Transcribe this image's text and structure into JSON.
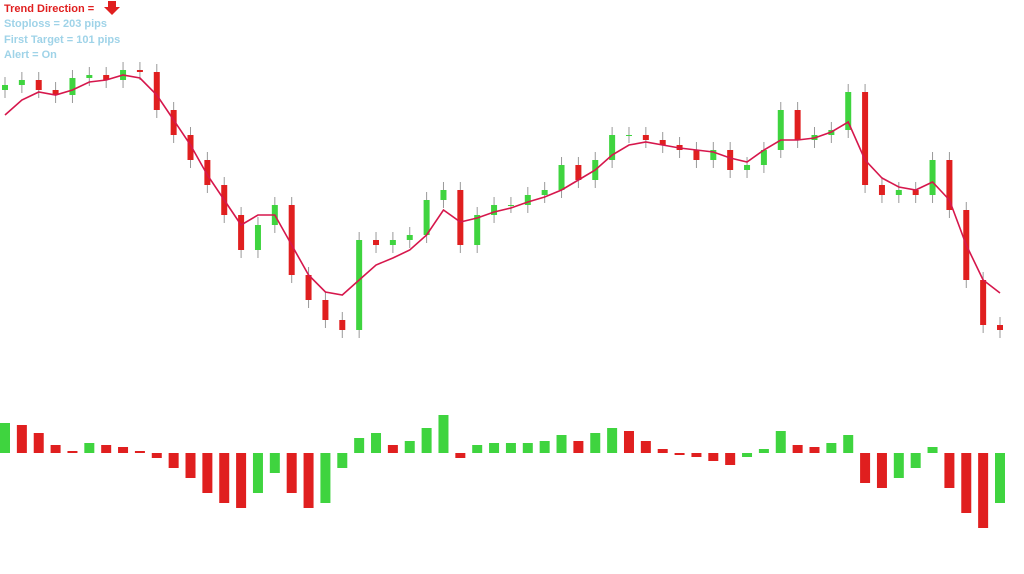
{
  "chart_data": [
    {
      "type": "candlestick",
      "annotations": [
        "Trend Direction =",
        "Stoploss = 203 pips",
        "First Target = 101 pips",
        "Alert = On"
      ],
      "open": [
        255,
        260,
        265,
        255,
        250,
        267,
        270,
        265,
        275,
        273,
        235,
        210,
        185,
        160,
        130,
        95,
        120,
        140,
        70,
        45,
        25,
        15,
        105,
        100,
        105,
        110,
        145,
        155,
        100,
        130,
        140,
        140,
        150,
        155,
        180,
        165,
        185,
        210,
        210,
        205,
        200,
        195,
        185,
        195,
        175,
        180,
        195,
        235,
        205,
        210,
        215,
        253,
        160,
        150,
        155,
        150,
        185,
        135,
        65,
        20
      ],
      "high": [
        268,
        273,
        273,
        263,
        275,
        278,
        278,
        283,
        283,
        281,
        243,
        218,
        193,
        168,
        138,
        128,
        148,
        148,
        78,
        53,
        33,
        113,
        113,
        113,
        118,
        153,
        163,
        163,
        138,
        148,
        148,
        158,
        163,
        188,
        188,
        193,
        218,
        218,
        218,
        213,
        208,
        203,
        203,
        203,
        188,
        203,
        243,
        243,
        218,
        223,
        261,
        261,
        168,
        163,
        163,
        193,
        193,
        143,
        73,
        28
      ],
      "low": [
        247,
        252,
        247,
        242,
        242,
        259,
        257,
        257,
        265,
        227,
        202,
        177,
        152,
        122,
        87,
        87,
        112,
        62,
        37,
        17,
        7,
        7,
        92,
        92,
        97,
        102,
        137,
        92,
        92,
        122,
        132,
        132,
        142,
        147,
        157,
        157,
        177,
        202,
        197,
        192,
        187,
        177,
        177,
        167,
        167,
        172,
        187,
        197,
        197,
        202,
        207,
        152,
        142,
        142,
        142,
        142,
        127,
        57,
        12,
        7
      ],
      "close": [
        260,
        265,
        255,
        250,
        267,
        270,
        265,
        275,
        273,
        235,
        210,
        185,
        160,
        130,
        95,
        120,
        140,
        70,
        45,
        25,
        15,
        105,
        100,
        105,
        110,
        145,
        155,
        100,
        130,
        140,
        140,
        150,
        155,
        180,
        165,
        185,
        210,
        210,
        205,
        200,
        195,
        185,
        195,
        175,
        180,
        195,
        235,
        205,
        210,
        215,
        253,
        160,
        150,
        155,
        150,
        185,
        135,
        65,
        20,
        15
      ],
      "up_color": "#3fd43f",
      "down_color": "#e01f1f",
      "ylim": [
        0,
        345
      ],
      "moving_average": {
        "color": "#d6174c",
        "values": [
          230,
          245,
          253,
          250,
          255,
          263,
          265,
          270,
          267,
          250,
          225,
          200,
          170,
          145,
          120,
          130,
          130,
          100,
          70,
          53,
          50,
          65,
          80,
          87,
          95,
          110,
          135,
          123,
          127,
          133,
          137,
          143,
          148,
          155,
          165,
          175,
          190,
          200,
          203,
          200,
          197,
          195,
          193,
          187,
          183,
          195,
          205,
          205,
          207,
          213,
          223,
          185,
          167,
          158,
          155,
          163,
          145,
          100,
          65,
          52
        ]
      }
    },
    {
      "type": "histogram",
      "values": [
        30,
        28,
        20,
        8,
        2,
        10,
        8,
        6,
        2,
        -5,
        -15,
        -25,
        -40,
        -50,
        -55,
        -40,
        -20,
        -40,
        -55,
        -50,
        -15,
        15,
        20,
        8,
        12,
        25,
        38,
        -5,
        8,
        10,
        10,
        10,
        12,
        18,
        12,
        20,
        25,
        22,
        12,
        4,
        -2,
        -4,
        -8,
        -12,
        -4,
        4,
        22,
        8,
        6,
        10,
        18,
        -30,
        -35,
        -25,
        -15,
        6,
        -35,
        -60,
        -75,
        -50
      ],
      "up_color": "#3fd43f",
      "down_color": "#e01f1f",
      "ylim": [
        -80,
        40
      ]
    }
  ]
}
